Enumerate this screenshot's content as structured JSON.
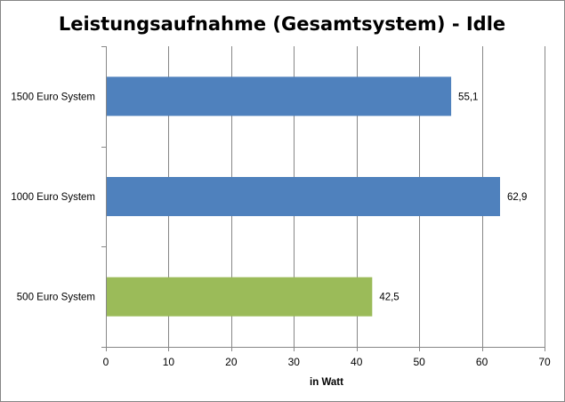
{
  "chart_data": {
    "type": "bar",
    "orientation": "horizontal",
    "title": "Leistungsaufnahme (Gesamtsystem) - Idle",
    "xlabel": "in Watt",
    "ylabel": "",
    "categories": [
      "1500 Euro System",
      "1000 Euro System",
      "500 Euro System"
    ],
    "values": [
      55.1,
      62.9,
      42.5
    ],
    "value_labels": [
      "55,1",
      "62,9",
      "42,5"
    ],
    "bar_colors": [
      "#4F81BD",
      "#4F81BD",
      "#9BBB59"
    ],
    "xlim": [
      0,
      70
    ],
    "xticks": [
      0,
      10,
      20,
      30,
      40,
      50,
      60,
      70
    ],
    "grid": true,
    "legend": "none"
  }
}
